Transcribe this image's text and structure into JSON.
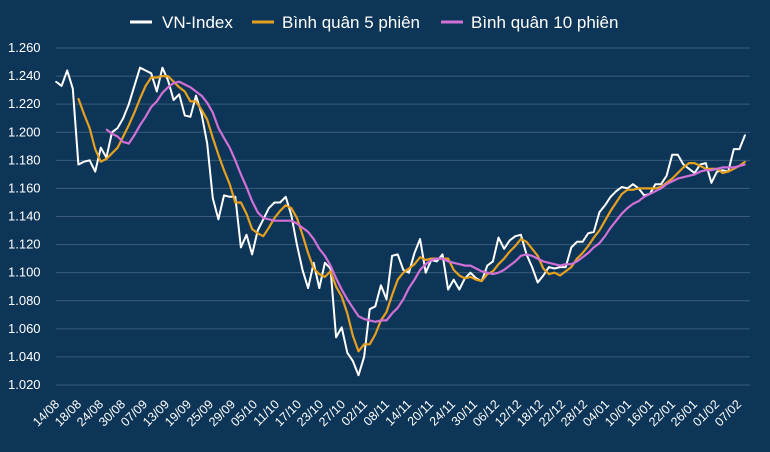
{
  "chart_data": {
    "type": "line",
    "legend_position": "top-center",
    "grid": true,
    "ylim": [
      1020,
      1260
    ],
    "y_ticks": [
      "1.260",
      "1.240",
      "1.220",
      "1.200",
      "1.180",
      "1.160",
      "1.140",
      "1.120",
      "1.100",
      "1.080",
      "1.060",
      "1.040",
      "1.020"
    ],
    "y_tick_values": [
      1260,
      1240,
      1220,
      1200,
      1180,
      1160,
      1140,
      1120,
      1100,
      1080,
      1060,
      1040,
      1020
    ],
    "x_labels": [
      "14/08",
      "18/08",
      "24/08",
      "30/08",
      "07/09",
      "13/09",
      "19/09",
      "25/09",
      "29/09",
      "05/10",
      "11/10",
      "17/10",
      "23/10",
      "27/10",
      "02/11",
      "08/11",
      "14/11",
      "20/11",
      "24/11",
      "30/11",
      "06/12",
      "12/12",
      "18/12",
      "22/12",
      "28/12",
      "04/01",
      "10/01",
      "16/01",
      "22/01",
      "26/01",
      "01/02",
      "07/02"
    ],
    "series": [
      {
        "name": "VN-Index",
        "color": "#ffffff",
        "values": [
          1236,
          1233,
          1244,
          1231,
          1177,
          1179,
          1180,
          1172,
          1189,
          1182,
          1200,
          1203,
          1210,
          1220,
          1233,
          1246,
          1244,
          1242,
          1229,
          1246,
          1237,
          1223,
          1227,
          1212,
          1211,
          1226,
          1213,
          1192,
          1153,
          1138,
          1155,
          1154,
          1154,
          1118,
          1127,
          1113,
          1130,
          1138,
          1146,
          1150,
          1150,
          1154,
          1141,
          1120,
          1102,
          1089,
          1107,
          1089,
          1107,
          1103,
          1054,
          1061,
          1043,
          1037,
          1027,
          1040,
          1074,
          1076,
          1091,
          1081,
          1112,
          1113,
          1102,
          1100,
          1114,
          1124,
          1100,
          1109,
          1108,
          1113,
          1088,
          1095,
          1088,
          1096,
          1100,
          1096,
          1094,
          1105,
          1108,
          1125,
          1117,
          1123,
          1126,
          1127,
          1113,
          1104,
          1093,
          1098,
          1104,
          1103,
          1104,
          1104,
          1118,
          1122,
          1122,
          1128,
          1129,
          1143,
          1148,
          1154,
          1158,
          1161,
          1160,
          1163,
          1160,
          1155,
          1156,
          1163,
          1163,
          1169,
          1184,
          1184,
          1177,
          1174,
          1171,
          1177,
          1178,
          1164,
          1172,
          1173,
          1172,
          1188,
          1188,
          1198
        ]
      },
      {
        "name": "Bình quân 5 phiên",
        "color": "#e6a020",
        "values": [
          null,
          null,
          null,
          null,
          1224,
          1213,
          1203,
          1188,
          1179,
          1181,
          1185,
          1189,
          1197,
          1205,
          1214,
          1224,
          1233,
          1239,
          1239,
          1240,
          1240,
          1236,
          1232,
          1229,
          1222,
          1222,
          1216,
          1209,
          1196,
          1184,
          1173,
          1163,
          1150,
          1150,
          1142,
          1131,
          1128,
          1126,
          1132,
          1139,
          1144,
          1148,
          1146,
          1139,
          1127,
          1114,
          1103,
          1099,
          1097,
          1101,
          1090,
          1083,
          1071,
          1055,
          1044,
          1049,
          1049,
          1056,
          1066,
          1072,
          1084,
          1095,
          1100,
          1103,
          1106,
          1111,
          1109,
          1110,
          1110,
          1110,
          1110,
          1102,
          1098,
          1096,
          1097,
          1095,
          1094,
          1099,
          1101,
          1106,
          1110,
          1115,
          1119,
          1124,
          1122,
          1117,
          1112,
          1103,
          1099,
          1100,
          1098,
          1101,
          1104,
          1110,
          1114,
          1119,
          1125,
          1130,
          1137,
          1144,
          1150,
          1156,
          1159,
          1159,
          1160,
          1160,
          1160,
          1160,
          1161,
          1164,
          1167,
          1171,
          1175,
          1178,
          1178,
          1176,
          1174,
          1174,
          1174,
          1171,
          1172,
          1174,
          1176,
          1179
        ]
      },
      {
        "name": "Bình quân 10 phiên",
        "color": "#d170d6",
        "values": [
          null,
          null,
          null,
          null,
          null,
          null,
          null,
          null,
          null,
          1202,
          1199,
          1197,
          1193,
          1192,
          1198,
          1205,
          1211,
          1218,
          1222,
          1228,
          1232,
          1235,
          1236,
          1234,
          1232,
          1229,
          1226,
          1221,
          1214,
          1203,
          1196,
          1189,
          1180,
          1170,
          1161,
          1151,
          1143,
          1139,
          1138,
          1137,
          1137,
          1137,
          1137,
          1135,
          1132,
          1129,
          1124,
          1117,
          1112,
          1105,
          1096,
          1088,
          1081,
          1075,
          1069,
          1067,
          1066,
          1065,
          1066,
          1066,
          1071,
          1075,
          1081,
          1089,
          1095,
          1102,
          1106,
          1109,
          1110,
          1110,
          1108,
          1107,
          1106,
          1105,
          1105,
          1103,
          1101,
          1100,
          1099,
          1100,
          1102,
          1105,
          1108,
          1112,
          1113,
          1112,
          1110,
          1108,
          1107,
          1106,
          1105,
          1106,
          1106,
          1108,
          1111,
          1114,
          1118,
          1121,
          1126,
          1132,
          1137,
          1142,
          1146,
          1149,
          1151,
          1154,
          1156,
          1158,
          1160,
          1163,
          1165,
          1167,
          1168,
          1169,
          1170,
          1172,
          1173,
          1173,
          1174,
          1175,
          1175,
          1175,
          1176,
          1177
        ]
      }
    ]
  }
}
